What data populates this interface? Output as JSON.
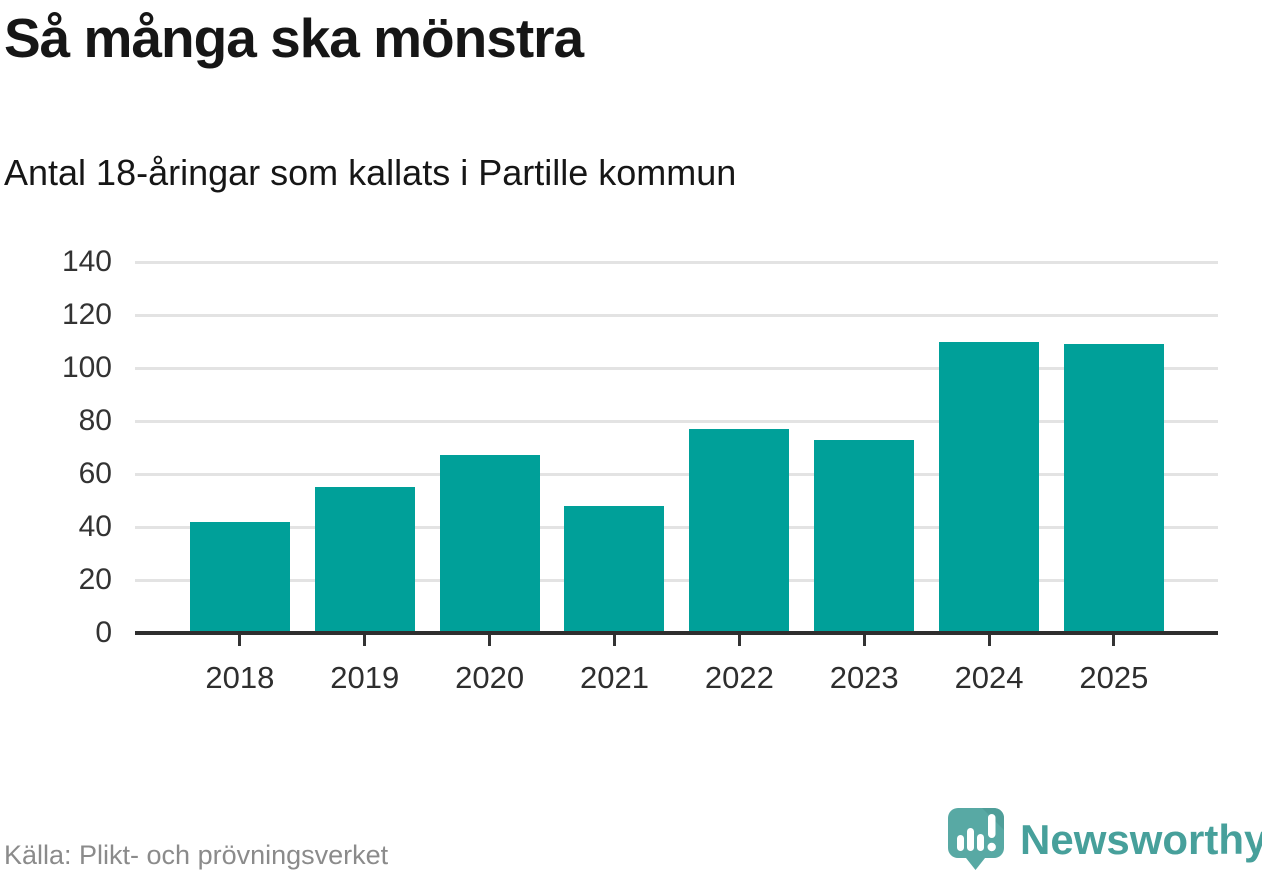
{
  "title": "Så många ska mönstra",
  "subtitle": "Antal 18-åringar som kallats i Partille kommun",
  "source": "Källa: Plikt- och prövningsverket",
  "brand": {
    "name": "Newsworthy",
    "icon": "newsworthy-speech-bubble-bar-chart-icon",
    "text_color": "#47a09b",
    "icon_color": "#58a9a4",
    "icon_fold_color": "#4f9e99"
  },
  "colors": {
    "bar": "#00a099",
    "grid": "#e3e3e3",
    "axis": "#2e2e2e",
    "text": "#161616",
    "muted": "#8b8b8b"
  },
  "chart_data": {
    "type": "bar",
    "categories": [
      "2018",
      "2019",
      "2020",
      "2021",
      "2022",
      "2023",
      "2024",
      "2025"
    ],
    "values": [
      42,
      55,
      67,
      48,
      77,
      73,
      110,
      109
    ],
    "title": "Så många ska mönstra",
    "subtitle": "Antal 18-åringar som kallats i Partille kommun",
    "xlabel": "",
    "ylabel": "",
    "ylim": [
      0,
      140
    ],
    "yticks": [
      0,
      20,
      40,
      60,
      80,
      100,
      120,
      140
    ],
    "grid": true,
    "legend": false,
    "bar_color": "#00a099",
    "source": "Källa: Plikt- och prövningsverket"
  }
}
